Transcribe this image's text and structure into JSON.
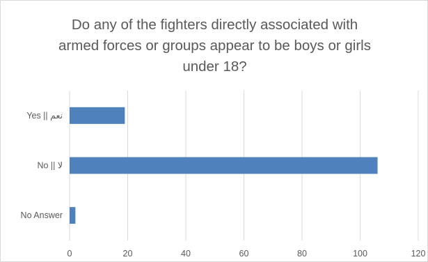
{
  "chart_data": {
    "type": "bar",
    "orientation": "horizontal",
    "title_lines": [
      "Do any of the fighters directly associated with",
      "armed forces or groups appear to be boys or girls",
      "under 18?"
    ],
    "categories": [
      "Yes || نعم",
      "No || لا",
      "No Answer"
    ],
    "values": [
      19,
      106,
      2
    ],
    "xlim": [
      0,
      120
    ],
    "xticks": [
      "0",
      "20",
      "40",
      "60",
      "80",
      "100",
      "120"
    ],
    "grid": "vertical",
    "bar_color": "#4f81bd",
    "grid_color": "#d9d9d9",
    "text_color": "#595959"
  }
}
